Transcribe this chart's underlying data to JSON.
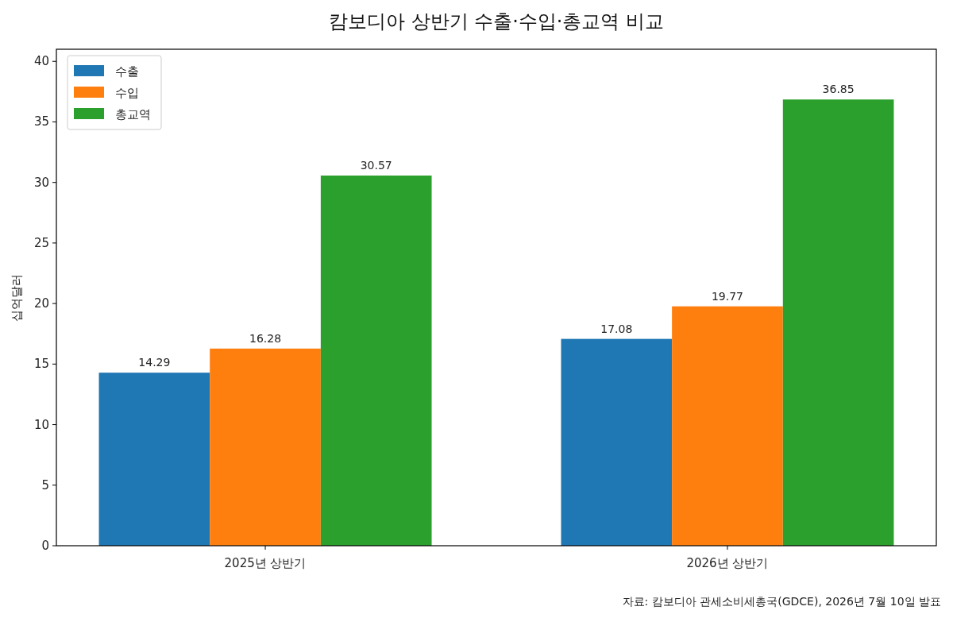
{
  "chart_data": {
    "type": "bar",
    "title": "캄보디아 상반기 수출·수입·총교역 비교",
    "ylabel": "십억달러",
    "categories": [
      "2025년 상반기",
      "2026년 상반기"
    ],
    "series": [
      {
        "name": "수출",
        "color": "#1f77b4",
        "values": [
          14.29,
          17.08
        ]
      },
      {
        "name": "수입",
        "color": "#ff7f0e",
        "values": [
          16.28,
          19.77
        ]
      },
      {
        "name": "총교역",
        "color": "#2ca02c",
        "values": [
          30.57,
          36.85
        ]
      }
    ],
    "ylim": [
      0,
      41
    ],
    "yticks": [
      0,
      5,
      10,
      15,
      20,
      25,
      30,
      35,
      40
    ],
    "data_labels": true,
    "legend": "top left",
    "annotations": [
      "자료: 캄보디아 관세소비세총국(GDCE), 2026년 7월 10일 발표"
    ]
  }
}
